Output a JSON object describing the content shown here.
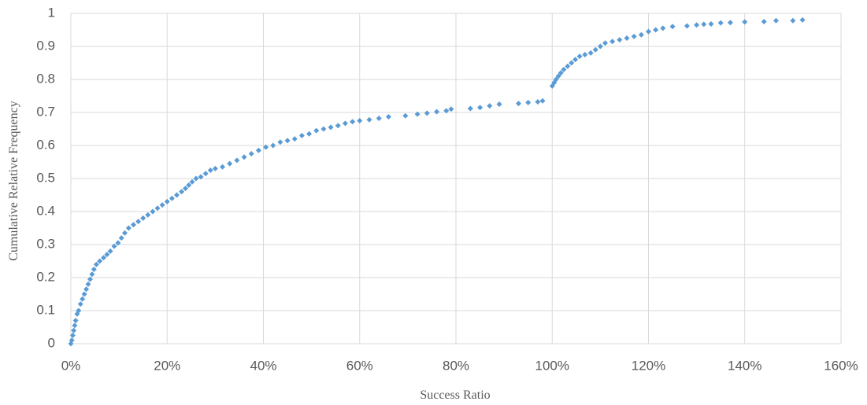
{
  "chart_data": {
    "type": "scatter",
    "x_label": "Success Ratio",
    "y_label": "Cumulative Relative Frequency",
    "color": "#5b9bd5",
    "grid": true,
    "xlim": [
      0,
      160
    ],
    "xticks": [
      {
        "value": 0,
        "label": "0%"
      },
      {
        "value": 20,
        "label": "20%"
      },
      {
        "value": 40,
        "label": "40%"
      },
      {
        "value": 60,
        "label": "60%"
      },
      {
        "value": 80,
        "label": "80%"
      },
      {
        "value": 100,
        "label": "100%"
      },
      {
        "value": 120,
        "label": "120%"
      },
      {
        "value": 140,
        "label": "140%"
      },
      {
        "value": 160,
        "label": "160%"
      }
    ],
    "ylim": [
      0,
      1
    ],
    "yticks": [
      0,
      0.1,
      0.2,
      0.3,
      0.4,
      0.5,
      0.6,
      0.7,
      0.8,
      0.9,
      1
    ],
    "x": [
      0,
      0.2,
      0.4,
      0.6,
      0.8,
      1,
      1.3,
      1.6,
      2,
      2.4,
      2.8,
      3.2,
      3.6,
      4,
      4.4,
      4.8,
      5.3,
      6,
      6.8,
      7.5,
      8.2,
      9,
      9.8,
      10.5,
      11.2,
      12,
      13,
      14,
      15,
      16,
      17,
      18,
      19,
      20,
      21,
      22,
      23,
      23.8,
      24.5,
      25.2,
      26,
      27,
      28,
      29,
      30,
      31.5,
      33,
      34.5,
      36,
      37.5,
      39,
      40.5,
      42,
      43.5,
      45,
      46.5,
      48,
      49.5,
      51,
      52.5,
      54,
      55.5,
      57,
      58.5,
      60,
      62,
      64,
      66,
      69.5,
      72,
      74,
      76,
      78,
      79,
      83,
      85,
      87,
      89,
      93,
      95,
      97,
      98,
      100,
      100.4,
      100.8,
      101.3,
      101.8,
      102.4,
      103.2,
      104,
      104.8,
      105.7,
      106.8,
      108,
      109,
      110,
      111,
      112.5,
      114,
      115.5,
      117,
      118.5,
      120,
      121.5,
      123,
      125,
      128,
      130,
      131.5,
      133,
      135,
      137,
      140,
      144,
      146.5,
      150,
      152
    ],
    "values": [
      0,
      0.01,
      0.025,
      0.04,
      0.055,
      0.07,
      0.09,
      0.1,
      0.12,
      0.135,
      0.15,
      0.165,
      0.18,
      0.195,
      0.21,
      0.225,
      0.24,
      0.25,
      0.26,
      0.27,
      0.28,
      0.295,
      0.305,
      0.32,
      0.335,
      0.35,
      0.36,
      0.37,
      0.38,
      0.39,
      0.4,
      0.41,
      0.42,
      0.43,
      0.44,
      0.45,
      0.46,
      0.47,
      0.48,
      0.49,
      0.5,
      0.505,
      0.515,
      0.525,
      0.53,
      0.535,
      0.545,
      0.555,
      0.565,
      0.575,
      0.585,
      0.595,
      0.6,
      0.61,
      0.615,
      0.62,
      0.63,
      0.635,
      0.645,
      0.65,
      0.655,
      0.66,
      0.667,
      0.672,
      0.675,
      0.678,
      0.682,
      0.687,
      0.69,
      0.695,
      0.698,
      0.702,
      0.705,
      0.71,
      0.712,
      0.715,
      0.72,
      0.725,
      0.727,
      0.73,
      0.732,
      0.735,
      0.78,
      0.79,
      0.8,
      0.81,
      0.82,
      0.83,
      0.84,
      0.85,
      0.86,
      0.87,
      0.875,
      0.88,
      0.89,
      0.9,
      0.91,
      0.915,
      0.92,
      0.925,
      0.93,
      0.935,
      0.945,
      0.95,
      0.955,
      0.96,
      0.962,
      0.965,
      0.967,
      0.968,
      0.971,
      0.972,
      0.974,
      0.975,
      0.978,
      0.978,
      0.98
    ]
  }
}
